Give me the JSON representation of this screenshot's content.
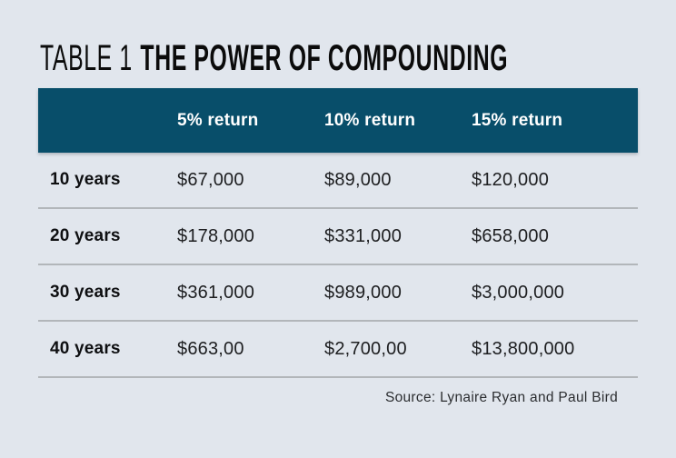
{
  "title": {
    "prefix": "TABLE 1",
    "heading": "THE POWER OF COMPOUNDING"
  },
  "chart_data": {
    "type": "table",
    "title": "TABLE 1 THE POWER OF COMPOUNDING",
    "column_headers": [
      "5% return",
      "10% return",
      "15% return"
    ],
    "row_headers": [
      "10 years",
      "20 years",
      "30 years",
      "40 years"
    ],
    "rows": [
      [
        "$67,000",
        "$89,000",
        "$120,000"
      ],
      [
        "$178,000",
        "$331,000",
        "$658,000"
      ],
      [
        "$361,000",
        "$989,000",
        "$3,000,000"
      ],
      [
        "$663,00",
        "$2,700,00",
        "$13,800,000"
      ]
    ],
    "source": "Source: Lynaire Ryan and Paul Bird"
  },
  "colors": {
    "background": "#e1e6ed",
    "header_bg": "#084e6a",
    "header_text": "#ffffff",
    "divider": "#b2b6ba",
    "text": "#1d1e20",
    "title_text": "#0b0b0b",
    "source_text": "#2b2d30"
  }
}
